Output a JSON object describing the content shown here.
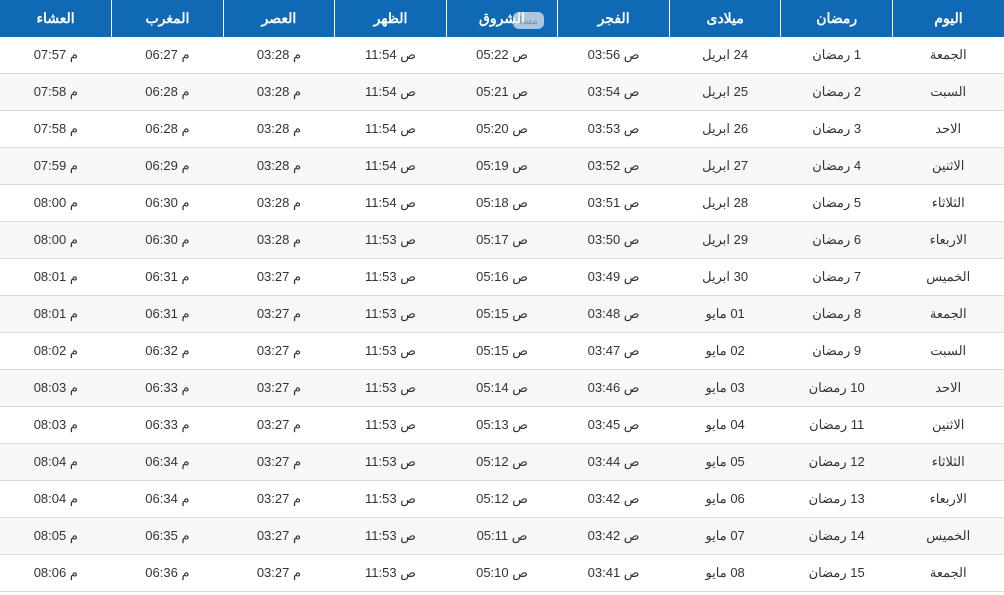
{
  "table": {
    "type": "table",
    "background_color": "#ffffff",
    "header_bg": "#0f69b5",
    "header_fg": "#ffffff",
    "row_alt_bg": "#f7f7f7",
    "border_color": "#dddddd",
    "font_family": "Tahoma",
    "header_fontsize": 14,
    "cell_fontsize": 13,
    "columns": [
      "اليوم",
      "رمضان",
      "ميلادى",
      "الفجر",
      "الشروق",
      "الظهر",
      "العصر",
      "المغرب",
      "العشاء"
    ],
    "rows": [
      {
        "day": "الجمعة",
        "ramadan": "1 رمضان",
        "gregorian": "24 ابريل",
        "fajr": "03:56 ص",
        "shuruq": "05:22 ص",
        "dhuhr": "11:54 ص",
        "asr": "03:28 م",
        "maghrib": "06:27 م",
        "isha": "07:57 م"
      },
      {
        "day": "السبت",
        "ramadan": "2 رمضان",
        "gregorian": "25 ابريل",
        "fajr": "03:54 ص",
        "shuruq": "05:21 ص",
        "dhuhr": "11:54 ص",
        "asr": "03:28 م",
        "maghrib": "06:28 م",
        "isha": "07:58 م"
      },
      {
        "day": "الاحد",
        "ramadan": "3 رمضان",
        "gregorian": "26 ابريل",
        "fajr": "03:53 ص",
        "shuruq": "05:20 ص",
        "dhuhr": "11:54 ص",
        "asr": "03:28 م",
        "maghrib": "06:28 م",
        "isha": "07:58 م"
      },
      {
        "day": "الاثنين",
        "ramadan": "4 رمضان",
        "gregorian": "27 ابريل",
        "fajr": "03:52 ص",
        "shuruq": "05:19 ص",
        "dhuhr": "11:54 ص",
        "asr": "03:28 م",
        "maghrib": "06:29 م",
        "isha": "07:59 م"
      },
      {
        "day": "الثلاثاء",
        "ramadan": "5 رمضان",
        "gregorian": "28 ابريل",
        "fajr": "03:51 ص",
        "shuruq": "05:18 ص",
        "dhuhr": "11:54 ص",
        "asr": "03:28 م",
        "maghrib": "06:30 م",
        "isha": "08:00 م"
      },
      {
        "day": "الاربعاء",
        "ramadan": "6 رمضان",
        "gregorian": "29 ابريل",
        "fajr": "03:50 ص",
        "shuruq": "05:17 ص",
        "dhuhr": "11:53 ص",
        "asr": "03:28 م",
        "maghrib": "06:30 م",
        "isha": "08:00 م"
      },
      {
        "day": "الخميس",
        "ramadan": "7 رمضان",
        "gregorian": "30 ابريل",
        "fajr": "03:49 ص",
        "shuruq": "05:16 ص",
        "dhuhr": "11:53 ص",
        "asr": "03:27 م",
        "maghrib": "06:31 م",
        "isha": "08:01 م"
      },
      {
        "day": "الجمعة",
        "ramadan": "8 رمضان",
        "gregorian": "01 مايو",
        "fajr": "03:48 ص",
        "shuruq": "05:15 ص",
        "dhuhr": "11:53 ص",
        "asr": "03:27 م",
        "maghrib": "06:31 م",
        "isha": "08:01 م"
      },
      {
        "day": "السبت",
        "ramadan": "9 رمضان",
        "gregorian": "02 مايو",
        "fajr": "03:47 ص",
        "shuruq": "05:15 ص",
        "dhuhr": "11:53 ص",
        "asr": "03:27 م",
        "maghrib": "06:32 م",
        "isha": "08:02 م"
      },
      {
        "day": "الاحد",
        "ramadan": "10 رمضان",
        "gregorian": "03 مايو",
        "fajr": "03:46 ص",
        "shuruq": "05:14 ص",
        "dhuhr": "11:53 ص",
        "asr": "03:27 م",
        "maghrib": "06:33 م",
        "isha": "08:03 م"
      },
      {
        "day": "الاثنين",
        "ramadan": "11 رمضان",
        "gregorian": "04 مايو",
        "fajr": "03:45 ص",
        "shuruq": "05:13 ص",
        "dhuhr": "11:53 ص",
        "asr": "03:27 م",
        "maghrib": "06:33 م",
        "isha": "08:03 م"
      },
      {
        "day": "الثلاثاء",
        "ramadan": "12 رمضان",
        "gregorian": "05 مايو",
        "fajr": "03:44 ص",
        "shuruq": "05:12 ص",
        "dhuhr": "11:53 ص",
        "asr": "03:27 م",
        "maghrib": "06:34 م",
        "isha": "08:04 م"
      },
      {
        "day": "الاربعاء",
        "ramadan": "13 رمضان",
        "gregorian": "06 مايو",
        "fajr": "03:42 ص",
        "shuruq": "05:12 ص",
        "dhuhr": "11:53 ص",
        "asr": "03:27 م",
        "maghrib": "06:34 م",
        "isha": "08:04 م"
      },
      {
        "day": "الخميس",
        "ramadan": "14 رمضان",
        "gregorian": "07 مايو",
        "fajr": "03:42 ص",
        "shuruq": "05:11 ص",
        "dhuhr": "11:53 ص",
        "asr": "03:27 م",
        "maghrib": "06:35 م",
        "isha": "08:05 م"
      },
      {
        "day": "الجمعة",
        "ramadan": "15 رمضان",
        "gregorian": "08 مايو",
        "fajr": "03:41 ص",
        "shuruq": "05:10 ص",
        "dhuhr": "11:53 ص",
        "asr": "03:27 م",
        "maghrib": "06:36 م",
        "isha": "08:06 م"
      }
    ]
  },
  "watermark": "مسا"
}
